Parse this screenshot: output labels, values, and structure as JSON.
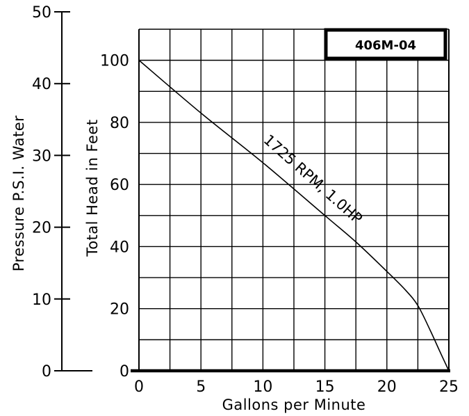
{
  "chart_data": {
    "type": "line",
    "model_label": "406M-04",
    "xlabel": "Gallons per Minute",
    "ylabel": "Total Head in Feet",
    "y2label": "Pressure P.S.I. Water",
    "xlim": [
      0,
      25
    ],
    "ylim": [
      0,
      110
    ],
    "y2lim": [
      0,
      50
    ],
    "x_ticks": [
      0,
      5,
      10,
      15,
      20,
      25
    ],
    "y_ticks": [
      0,
      20,
      40,
      60,
      80,
      100
    ],
    "y2_ticks": [
      0,
      10,
      20,
      30,
      40,
      50
    ],
    "x_grid": [
      0,
      2.5,
      5,
      7.5,
      10,
      12.5,
      15,
      17.5,
      20,
      22.5,
      25
    ],
    "y_grid": [
      0,
      10,
      20,
      30,
      40,
      50,
      60,
      70,
      80,
      90,
      100,
      110
    ],
    "grid": true,
    "series": [
      {
        "name": "1725 RPM, 1.0HP",
        "x": [
          0,
          5,
          10,
          15,
          17.5,
          20,
          21.5,
          22.5,
          23.5,
          24.3,
          25
        ],
        "y": [
          100,
          83,
          67,
          50,
          41.5,
          32,
          26,
          21,
          13,
          6,
          0
        ]
      }
    ]
  }
}
